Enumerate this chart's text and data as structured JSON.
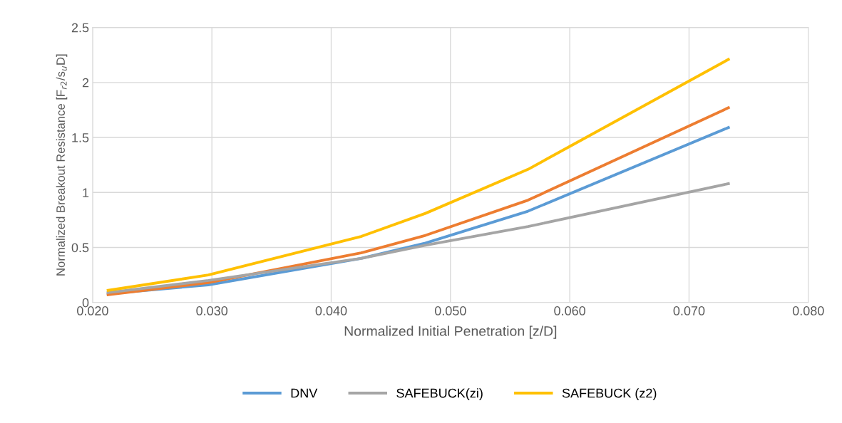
{
  "chart_data": {
    "type": "line",
    "xlabel": "Normalized Initial Penetration [z/D]",
    "ylabel": "Normalized Breakout Resistance [F$_{r2}$/s$_{u}$D]",
    "x": [
      0.0213,
      0.0297,
      0.0425,
      0.0479,
      0.0565,
      0.0733
    ],
    "series": [
      {
        "name": "DNV",
        "color": "#5b9bd5",
        "values": [
          0.08,
          0.16,
          0.4,
          0.54,
          0.83,
          1.59
        ]
      },
      {
        "color": "#ed7d31",
        "values": [
          0.07,
          0.18,
          0.45,
          0.61,
          0.93,
          1.77
        ]
      },
      {
        "name": "SAFEBUCK(zi)",
        "color": "#a5a5a5",
        "values": [
          0.09,
          0.2,
          0.4,
          0.52,
          0.69,
          1.08
        ]
      },
      {
        "name": "SAFEBUCK (z2)",
        "color": "#ffc000",
        "values": [
          0.11,
          0.25,
          0.6,
          0.81,
          1.21,
          2.21
        ]
      }
    ],
    "xlim": [
      0.02,
      0.08
    ],
    "xticks": [
      {
        "value": 0.02,
        "label": "0.020"
      },
      {
        "value": 0.03,
        "label": "0.030"
      },
      {
        "value": 0.04,
        "label": "0.040"
      },
      {
        "value": 0.05,
        "label": "0.050"
      },
      {
        "value": 0.06,
        "label": "0.060"
      },
      {
        "value": 0.07,
        "label": "0.070"
      },
      {
        "value": 0.08,
        "label": "0.080"
      }
    ],
    "ylim": [
      0,
      2.5
    ],
    "yticks": [
      0,
      0.5,
      1,
      1.5,
      2,
      2.5
    ],
    "grid": true,
    "legend": "bottom",
    "marker": "none",
    "line_style": "solid"
  }
}
